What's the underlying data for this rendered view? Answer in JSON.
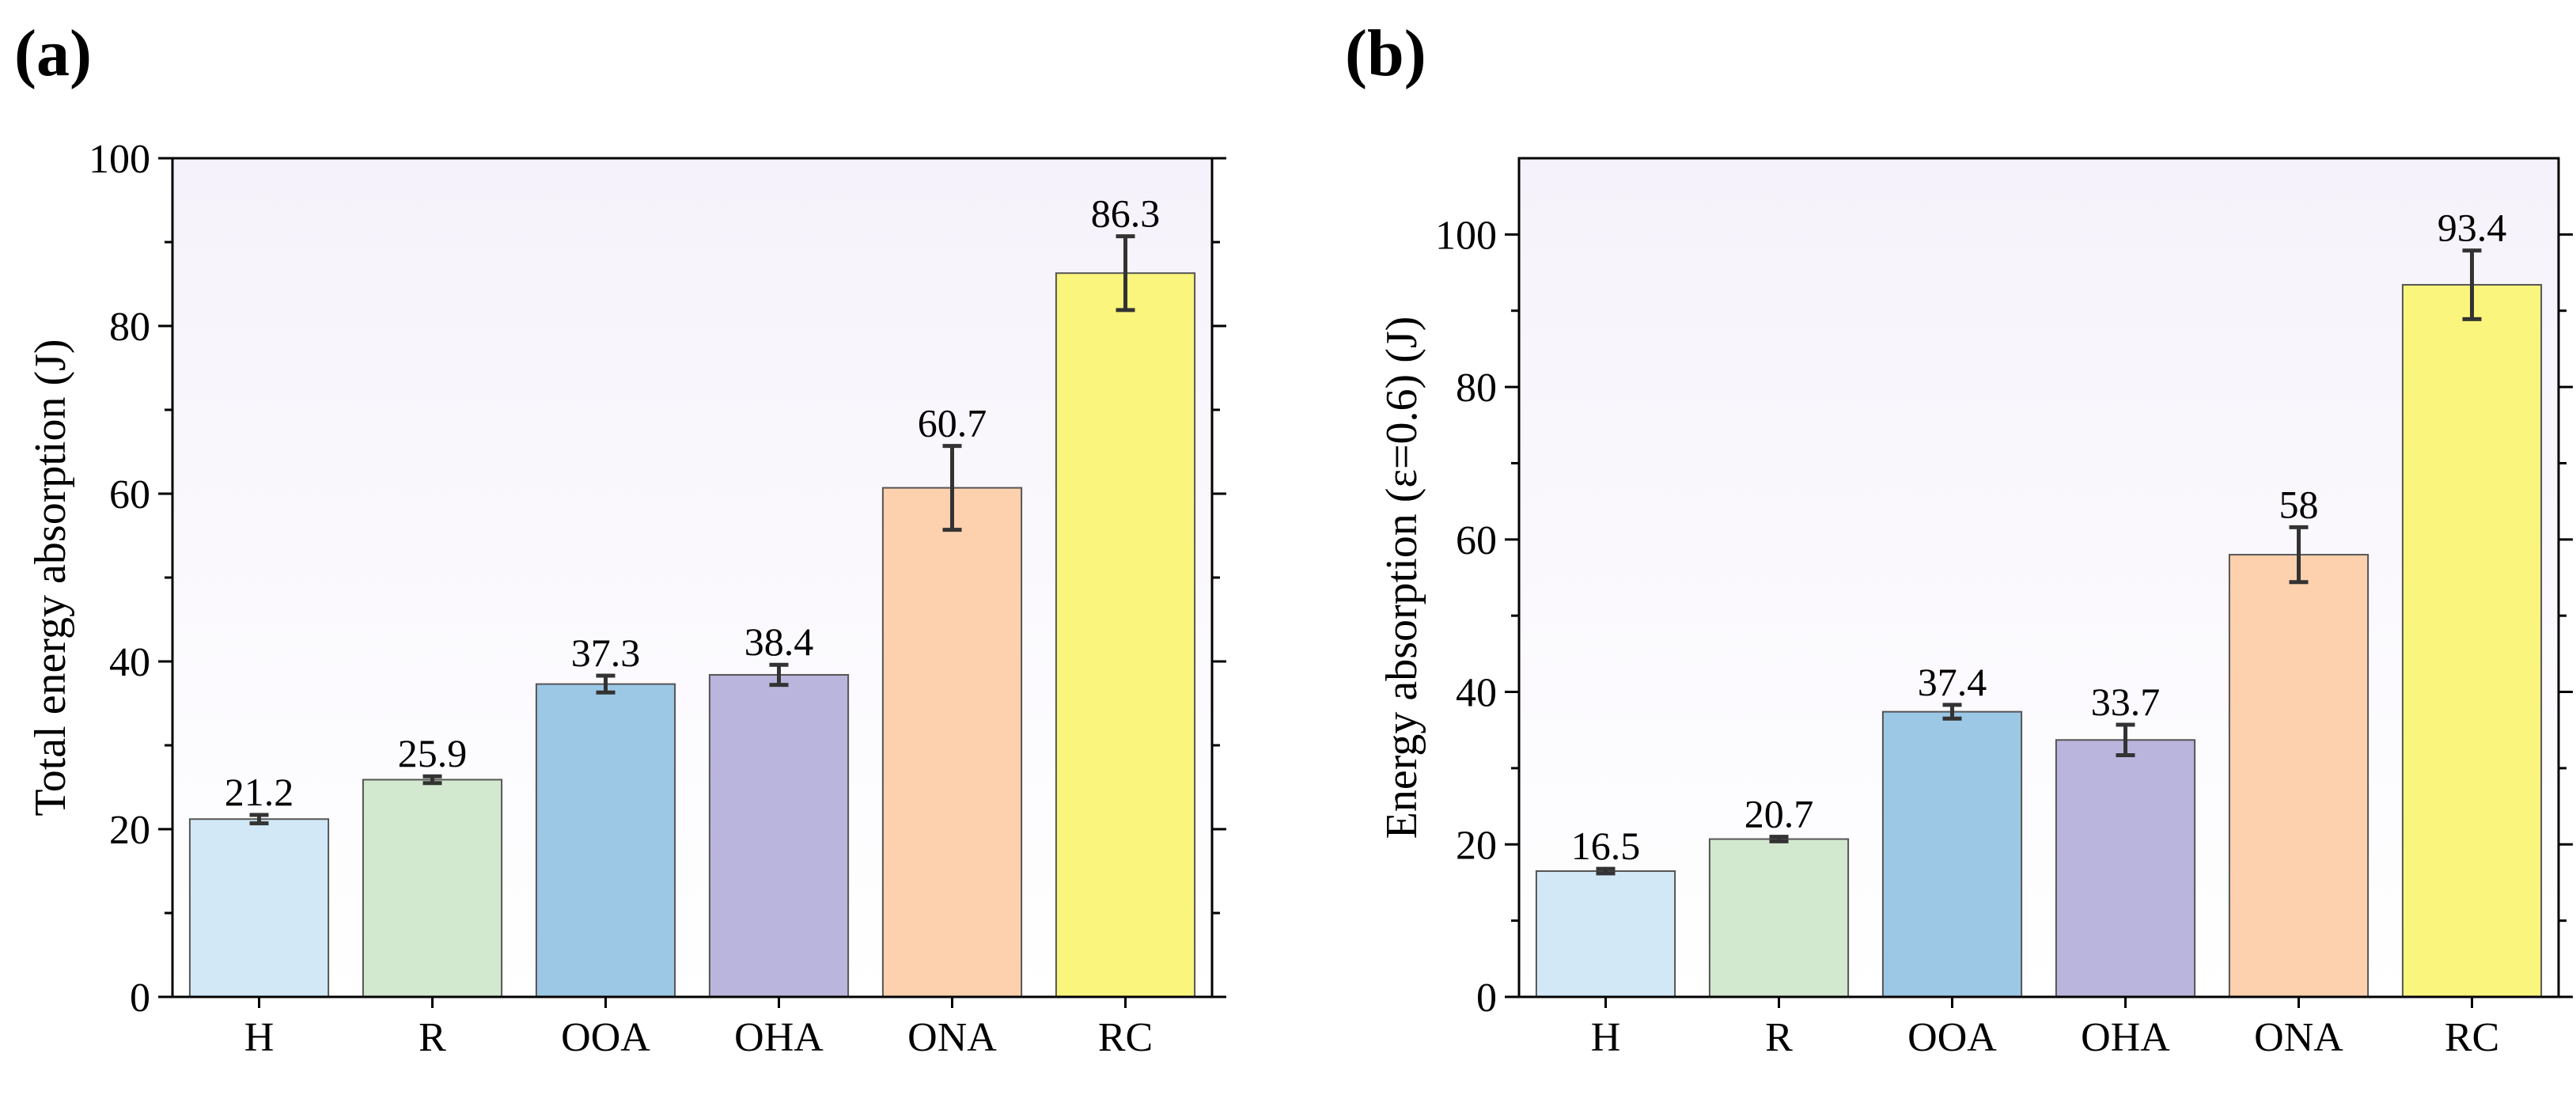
{
  "chart_data": [
    {
      "type": "bar",
      "panel": "(a)",
      "categories": [
        "H",
        "R",
        "OOA",
        "OHA",
        "ONA",
        "RC"
      ],
      "values": [
        21.2,
        25.9,
        37.3,
        38.4,
        60.7,
        86.3
      ],
      "labels": [
        "21.2",
        "25.9",
        "37.3",
        "38.4",
        "60.7",
        "86.3"
      ],
      "errors": [
        0.5,
        0.4,
        1.0,
        1.2,
        5.0,
        4.4
      ],
      "colors": [
        "#d2e8f7",
        "#d3e9cf",
        "#9cc8e6",
        "#b9b5dc",
        "#fdd1ae",
        "#faf57c"
      ],
      "title": "",
      "xlabel": "",
      "ylabel": "Total energy absorption (J)",
      "ylim": [
        0,
        100
      ],
      "yticks": [
        0,
        20,
        40,
        60,
        80,
        100
      ],
      "yminor": 10,
      "tick_labels": [
        "0",
        "20",
        "40",
        "60",
        "80",
        "100"
      ]
    },
    {
      "type": "bar",
      "panel": "(b)",
      "categories": [
        "H",
        "R",
        "OOA",
        "OHA",
        "ONA",
        "RC"
      ],
      "values": [
        16.5,
        20.7,
        37.4,
        33.7,
        58,
        93.4
      ],
      "labels": [
        "16.5",
        "20.7",
        "37.4",
        "33.7",
        "58",
        "93.4"
      ],
      "errors": [
        0.3,
        0.3,
        0.9,
        2.0,
        3.6,
        4.5
      ],
      "colors": [
        "#d2e8f7",
        "#d3e9cf",
        "#9cc8e6",
        "#b9b5dc",
        "#fdd1ae",
        "#faf57c"
      ],
      "title": "",
      "xlabel": "",
      "ylabel": "Energy absorption (ε=0.6) (J)",
      "ylim": [
        0,
        110
      ],
      "yticks": [
        0,
        20,
        40,
        60,
        80,
        100
      ],
      "yminor": 10,
      "tick_labels": [
        "0",
        "20",
        "40",
        "60",
        "80",
        "100"
      ]
    }
  ],
  "style": {
    "plot_gradient_top": "#f6f2fb",
    "plot_gradient_bottom": "#ffffff"
  }
}
